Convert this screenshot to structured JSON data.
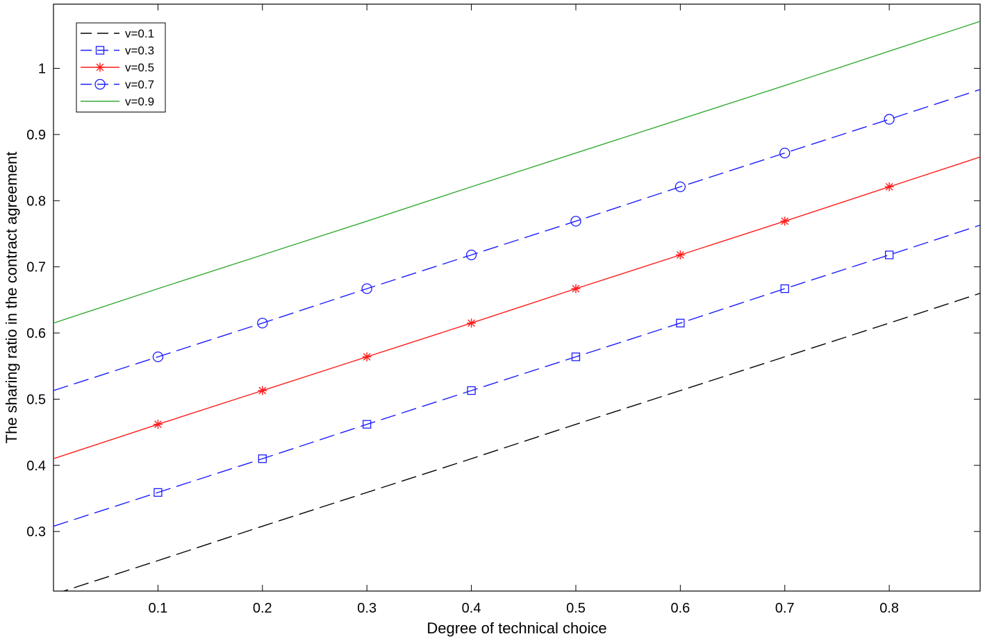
{
  "chart_data": {
    "type": "line",
    "xlabel": "Degree of technical choice",
    "ylabel": "The sharing ratio in the contract agreement",
    "xlim": [
      0.0,
      0.887
    ],
    "ylim": [
      0.21,
      1.097
    ],
    "xticks": [
      0.1,
      0.2,
      0.3,
      0.4,
      0.5,
      0.6,
      0.7,
      0.8
    ],
    "xtick_labels": [
      "0.1",
      "0.2",
      "0.3",
      "0.4",
      "0.5",
      "0.6",
      "0.7",
      "0.8"
    ],
    "yticks": [
      0.3,
      0.4,
      0.5,
      0.6,
      0.7,
      0.8,
      0.9,
      1.0
    ],
    "ytick_labels": [
      "0.3",
      "0.4",
      "0.5",
      "0.6",
      "0.7",
      "0.8",
      "0.9",
      "1"
    ],
    "grid": false,
    "legend_position": "top-left",
    "series": [
      {
        "name": "v=0.1",
        "color": "#000000",
        "dash": "long-dash",
        "marker": "none",
        "x": [
          0.0,
          0.1,
          0.2,
          0.3,
          0.4,
          0.5,
          0.6,
          0.7,
          0.8,
          0.887
        ],
        "y": [
          0.205,
          0.256,
          0.308,
          0.359,
          0.41,
          0.462,
          0.513,
          0.564,
          0.615,
          0.66
        ]
      },
      {
        "name": "v=0.3",
        "color": "#1a1aff",
        "dash": "long-dash",
        "marker": "square",
        "x": [
          0.0,
          0.1,
          0.2,
          0.3,
          0.4,
          0.5,
          0.6,
          0.7,
          0.8,
          0.887
        ],
        "y": [
          0.308,
          0.359,
          0.41,
          0.462,
          0.513,
          0.564,
          0.615,
          0.667,
          0.718,
          0.763
        ]
      },
      {
        "name": "v=0.5",
        "color": "#ff1a1a",
        "dash": "solid",
        "marker": "asterisk",
        "x": [
          0.0,
          0.1,
          0.2,
          0.3,
          0.4,
          0.5,
          0.6,
          0.7,
          0.8,
          0.887
        ],
        "y": [
          0.41,
          0.462,
          0.513,
          0.564,
          0.615,
          0.667,
          0.718,
          0.769,
          0.821,
          0.866
        ]
      },
      {
        "name": "v=0.7",
        "color": "#1a1aff",
        "dash": "long-dash",
        "marker": "circle",
        "x": [
          0.0,
          0.1,
          0.2,
          0.3,
          0.4,
          0.5,
          0.6,
          0.7,
          0.8,
          0.887
        ],
        "y": [
          0.513,
          0.564,
          0.615,
          0.667,
          0.718,
          0.769,
          0.821,
          0.872,
          0.923,
          0.968
        ]
      },
      {
        "name": "v=0.9",
        "color": "#33aa33",
        "dash": "solid",
        "marker": "none",
        "x": [
          0.0,
          0.1,
          0.2,
          0.3,
          0.4,
          0.5,
          0.6,
          0.7,
          0.8,
          0.887
        ],
        "y": [
          0.615,
          0.667,
          0.718,
          0.769,
          0.821,
          0.872,
          0.923,
          0.974,
          1.026,
          1.071
        ]
      }
    ]
  }
}
